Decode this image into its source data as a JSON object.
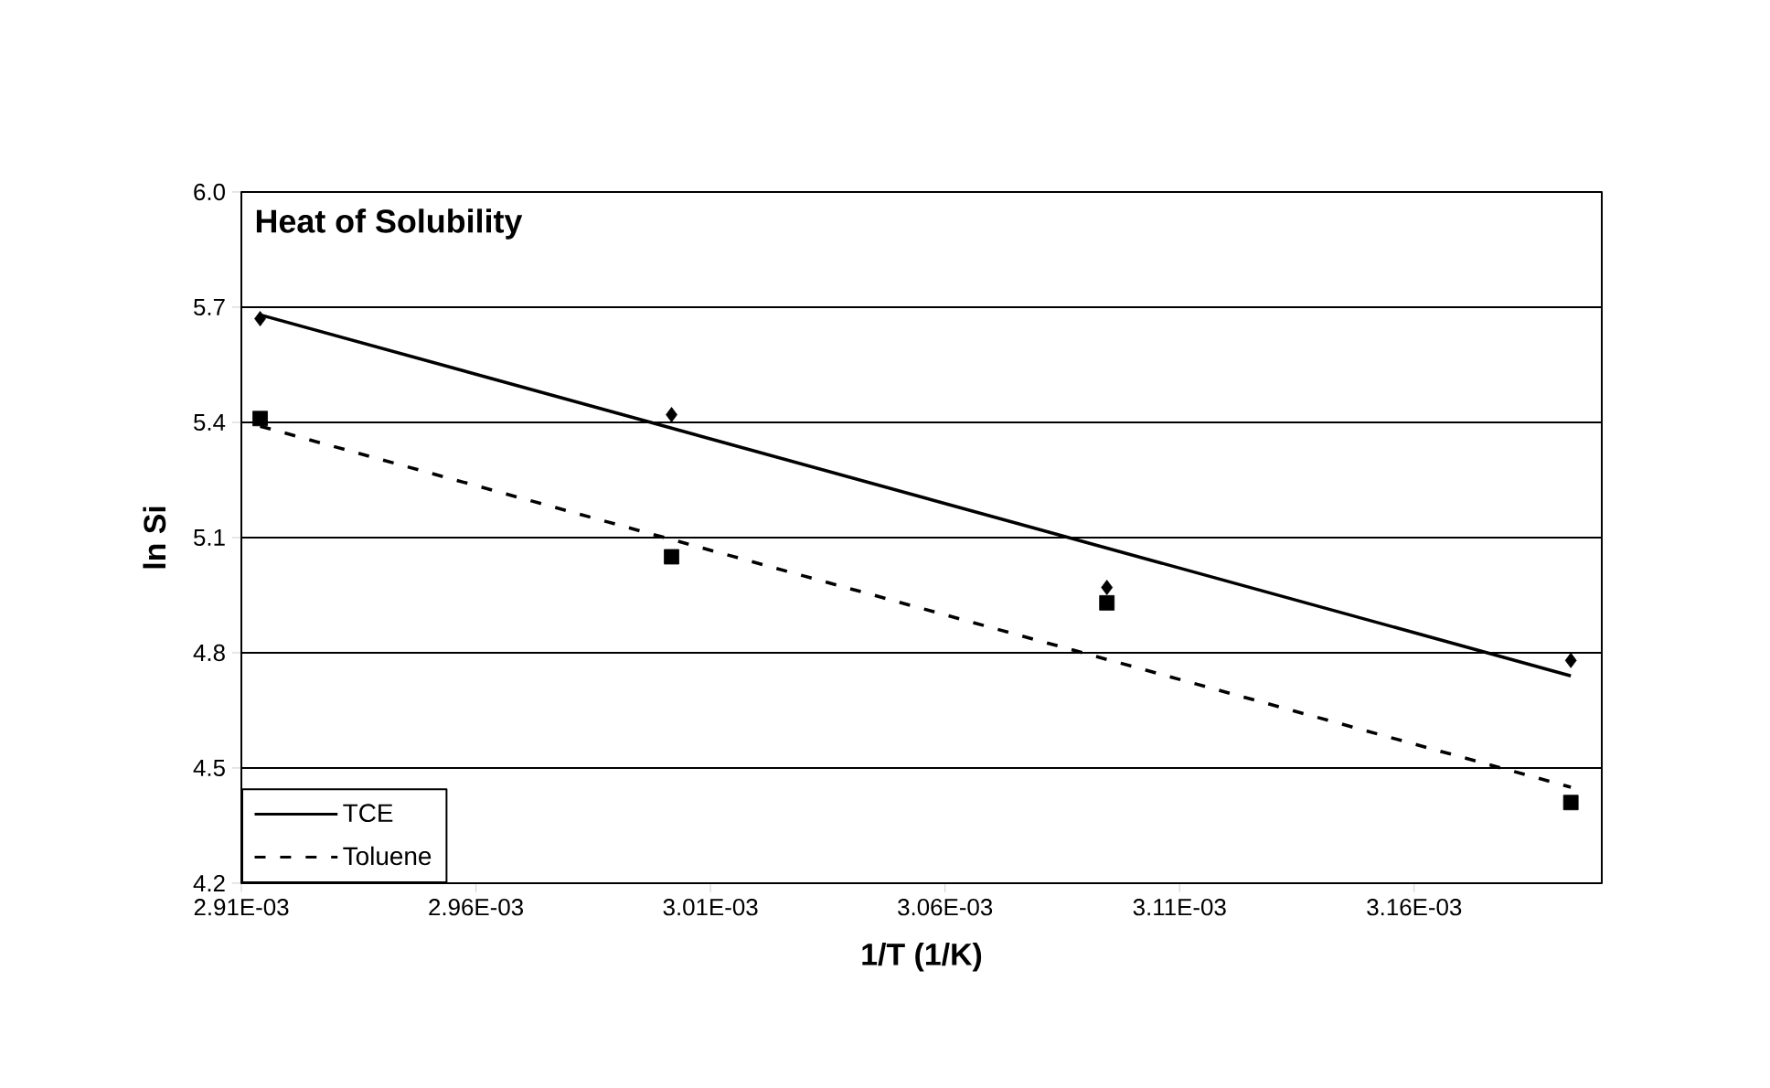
{
  "chart_data": {
    "type": "scatter",
    "title": "Heat of Solubility",
    "xlabel": "1/T (1/K)",
    "ylabel": "ln Si",
    "xlim": [
      0.00291,
      0.0032
    ],
    "ylim": [
      4.2,
      6.0
    ],
    "xticks": [
      {
        "value": 0.00291,
        "label": "2.91E-03"
      },
      {
        "value": 0.00296,
        "label": "2.96E-03"
      },
      {
        "value": 0.00301,
        "label": "3.01E-03"
      },
      {
        "value": 0.00306,
        "label": "3.06E-03"
      },
      {
        "value": 0.00311,
        "label": "3.11E-03"
      },
      {
        "value": 0.00316,
        "label": "3.16E-03"
      }
    ],
    "yticks": [
      {
        "value": 4.2,
        "label": "4.2"
      },
      {
        "value": 4.5,
        "label": "4.5"
      },
      {
        "value": 4.8,
        "label": "4.8"
      },
      {
        "value": 5.1,
        "label": "5.1"
      },
      {
        "value": 5.4,
        "label": "5.4"
      },
      {
        "value": 5.7,
        "label": "5.7"
      },
      {
        "value": 6.0,
        "label": "6.0"
      }
    ],
    "grid": "y",
    "legend": "bottom left",
    "series": [
      {
        "marker": "diamond",
        "color": "#000000",
        "x": [
          0.002914,
          0.0030017,
          0.0030945,
          0.0031934
        ],
        "values": [
          5.67,
          5.42,
          4.97,
          4.78
        ]
      },
      {
        "marker": "square",
        "color": "#000000",
        "x": [
          0.002914,
          0.0030017,
          0.0030945,
          0.0031934
        ],
        "values": [
          5.41,
          5.05,
          4.93,
          4.41
        ]
      },
      {
        "type": "line",
        "name": "TCE",
        "line_style": "solid",
        "marker": "none",
        "color": "#000000",
        "x": [
          0.002914,
          0.0031934
        ],
        "values": [
          5.68,
          4.74
        ]
      },
      {
        "type": "line",
        "name": "Toluene",
        "line_style": "dashed",
        "marker": "none",
        "color": "#000000",
        "x": [
          0.002914,
          0.0031934
        ],
        "values": [
          5.39,
          4.45
        ]
      }
    ]
  }
}
